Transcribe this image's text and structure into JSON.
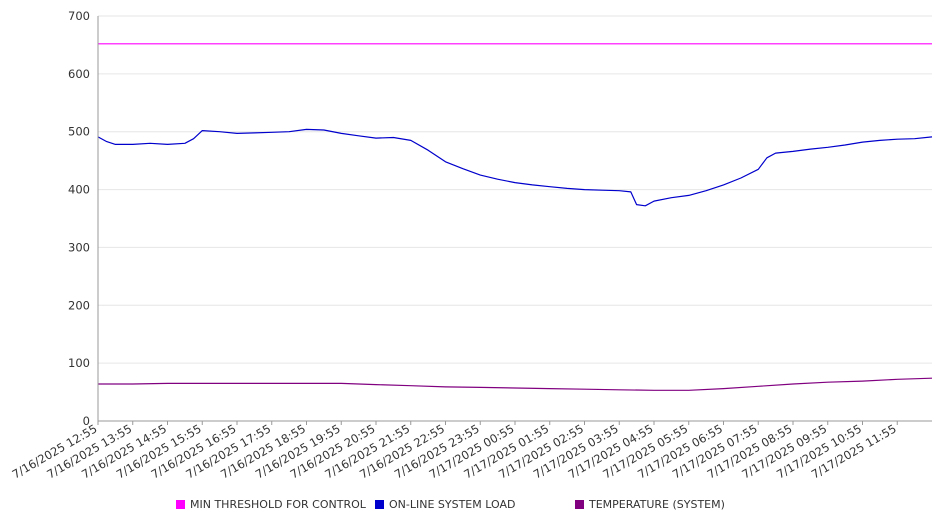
{
  "chart_data": {
    "type": "line",
    "title": "",
    "xlabel": "",
    "ylabel": "",
    "ylim": [
      0,
      700
    ],
    "y_ticks": [
      0,
      100,
      200,
      300,
      400,
      500,
      600,
      700
    ],
    "x_tick_labels": [
      "7/16/2025 12:55",
      "7/16/2025 13:55",
      "7/16/2025 14:55",
      "7/16/2025 15:55",
      "7/16/2025 16:55",
      "7/16/2025 17:55",
      "7/16/2025 18:55",
      "7/16/2025 19:55",
      "7/16/2025 20:55",
      "7/16/2025 21:55",
      "7/16/2025 22:55",
      "7/16/2025 23:55",
      "7/17/2025 00:55",
      "7/17/2025 01:55",
      "7/17/2025 02:55",
      "7/17/2025 03:55",
      "7/17/2025 04:55",
      "7/17/2025 05:55",
      "7/17/2025 06:55",
      "7/17/2025 07:55",
      "7/17/2025 08:55",
      "7/17/2025 09:55",
      "7/17/2025 10:55",
      "7/17/2025 11:55"
    ],
    "x_range": [
      "7/16/2025 12:55",
      "7/17/2025 12:55"
    ],
    "grid": "horizontal",
    "legend_position": "bottom",
    "series": [
      {
        "name": "MIN THRESHOLD FOR CONTROL",
        "color": "#ff00ff",
        "points": [
          [
            "7/16/2025 12:55",
            652
          ],
          [
            "7/17/2025 12:55",
            652
          ]
        ]
      },
      {
        "name": "ON-LINE SYSTEM LOAD",
        "color": "#0000cc",
        "points": [
          [
            "7/16/2025 12:55",
            491
          ],
          [
            "7/16/2025 13:10",
            483
          ],
          [
            "7/16/2025 13:25",
            478
          ],
          [
            "7/16/2025 13:55",
            478
          ],
          [
            "7/16/2025 14:25",
            480
          ],
          [
            "7/16/2025 14:55",
            478
          ],
          [
            "7/16/2025 15:25",
            480
          ],
          [
            "7/16/2025 15:40",
            488
          ],
          [
            "7/16/2025 15:55",
            502
          ],
          [
            "7/16/2025 16:25",
            500
          ],
          [
            "7/16/2025 16:55",
            497
          ],
          [
            "7/16/2025 17:25",
            498
          ],
          [
            "7/16/2025 17:55",
            499
          ],
          [
            "7/16/2025 18:25",
            500
          ],
          [
            "7/16/2025 18:55",
            504
          ],
          [
            "7/16/2025 19:25",
            503
          ],
          [
            "7/16/2025 19:55",
            497
          ],
          [
            "7/16/2025 20:25",
            493
          ],
          [
            "7/16/2025 20:55",
            489
          ],
          [
            "7/16/2025 21:25",
            490
          ],
          [
            "7/16/2025 21:55",
            485
          ],
          [
            "7/16/2025 22:25",
            468
          ],
          [
            "7/16/2025 22:55",
            448
          ],
          [
            "7/16/2025 23:25",
            436
          ],
          [
            "7/16/2025 23:55",
            425
          ],
          [
            "7/17/2025 00:25",
            418
          ],
          [
            "7/17/2025 00:55",
            412
          ],
          [
            "7/17/2025 01:25",
            408
          ],
          [
            "7/17/2025 01:55",
            405
          ],
          [
            "7/17/2025 02:25",
            402
          ],
          [
            "7/17/2025 02:55",
            400
          ],
          [
            "7/17/2025 03:25",
            399
          ],
          [
            "7/17/2025 03:55",
            398
          ],
          [
            "7/17/2025 04:15",
            396
          ],
          [
            "7/17/2025 04:25",
            374
          ],
          [
            "7/17/2025 04:40",
            372
          ],
          [
            "7/17/2025 04:55",
            380
          ],
          [
            "7/17/2025 05:25",
            386
          ],
          [
            "7/17/2025 05:55",
            390
          ],
          [
            "7/17/2025 06:25",
            398
          ],
          [
            "7/17/2025 06:55",
            408
          ],
          [
            "7/17/2025 07:25",
            420
          ],
          [
            "7/17/2025 07:55",
            435
          ],
          [
            "7/17/2025 08:10",
            455
          ],
          [
            "7/17/2025 08:25",
            463
          ],
          [
            "7/17/2025 08:55",
            466
          ],
          [
            "7/17/2025 09:25",
            470
          ],
          [
            "7/17/2025 09:55",
            473
          ],
          [
            "7/17/2025 10:25",
            477
          ],
          [
            "7/17/2025 10:55",
            482
          ],
          [
            "7/17/2025 11:25",
            485
          ],
          [
            "7/17/2025 11:55",
            487
          ],
          [
            "7/17/2025 12:25",
            488
          ],
          [
            "7/17/2025 12:55",
            491
          ]
        ]
      },
      {
        "name": "TEMPERATURE (SYSTEM)",
        "color": "#800080",
        "points": [
          [
            "7/16/2025 12:55",
            64
          ],
          [
            "7/16/2025 13:55",
            64
          ],
          [
            "7/16/2025 14:55",
            65
          ],
          [
            "7/16/2025 15:55",
            65
          ],
          [
            "7/16/2025 16:55",
            65
          ],
          [
            "7/16/2025 17:55",
            65
          ],
          [
            "7/16/2025 18:55",
            65
          ],
          [
            "7/16/2025 19:55",
            65
          ],
          [
            "7/16/2025 20:55",
            63
          ],
          [
            "7/16/2025 21:55",
            61
          ],
          [
            "7/16/2025 22:55",
            59
          ],
          [
            "7/16/2025 23:55",
            58
          ],
          [
            "7/17/2025 00:55",
            57
          ],
          [
            "7/17/2025 01:55",
            56
          ],
          [
            "7/17/2025 02:55",
            55
          ],
          [
            "7/17/2025 03:55",
            54
          ],
          [
            "7/17/2025 04:55",
            53
          ],
          [
            "7/17/2025 05:55",
            53
          ],
          [
            "7/17/2025 06:55",
            56
          ],
          [
            "7/17/2025 07:55",
            60
          ],
          [
            "7/17/2025 08:55",
            64
          ],
          [
            "7/17/2025 09:55",
            67
          ],
          [
            "7/17/2025 10:55",
            69
          ],
          [
            "7/17/2025 11:55",
            72
          ],
          [
            "7/17/2025 12:55",
            74
          ]
        ]
      }
    ]
  }
}
